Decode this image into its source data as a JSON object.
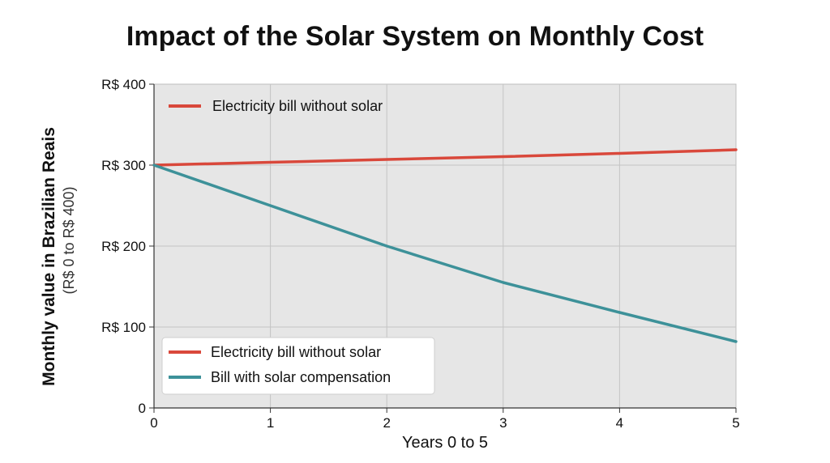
{
  "chart_data": {
    "type": "line",
    "title": "Impact of the Solar System on Monthly Cost",
    "xlabel": "Years 0 to 5",
    "ylabel": "Monthly value in Brazilian Reais",
    "ylabel_sub": "(R$ 0 to R$ 400)",
    "x": [
      0,
      1,
      2,
      3,
      4,
      5
    ],
    "x_ticks": [
      "0",
      "1",
      "2",
      "3",
      "4",
      "5"
    ],
    "y_ticks": [
      {
        "value": 0,
        "label": "0"
      },
      {
        "value": 100,
        "label": "R$ 100"
      },
      {
        "value": 200,
        "label": "R$ 200"
      },
      {
        "value": 300,
        "label": "R$ 300"
      },
      {
        "value": 400,
        "label": "R$ 400"
      }
    ],
    "xlim": [
      0,
      5
    ],
    "ylim": [
      0,
      400
    ],
    "grid": true,
    "series": [
      {
        "name": "Electricity bill without solar",
        "color": "#d9483b",
        "values": [
          300,
          303.5,
          307,
          310.5,
          314.5,
          319
        ]
      },
      {
        "name": "Bill with solar compensation",
        "color": "#3d9199",
        "values": [
          300,
          250,
          200,
          155,
          118,
          82
        ]
      }
    ],
    "legends": [
      {
        "placement": "top-left",
        "entries": [
          {
            "label": "Electricity bill without solar",
            "color": "#d9483b"
          }
        ]
      },
      {
        "placement": "bottom-left",
        "entries": [
          {
            "label": "Electricity bill without solar",
            "color": "#d9483b"
          },
          {
            "label": "Bill with solar compensation",
            "color": "#3d9199"
          }
        ]
      }
    ]
  }
}
